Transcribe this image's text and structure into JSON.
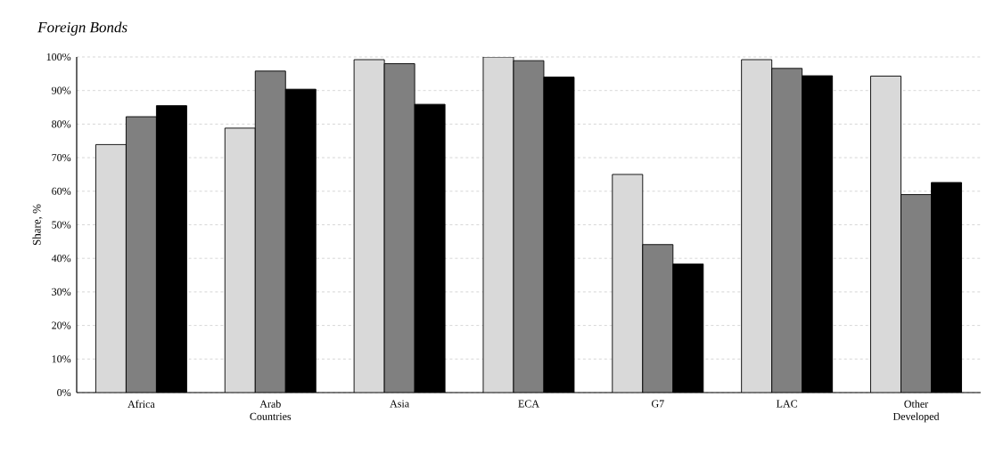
{
  "chart_data": {
    "type": "bar",
    "title": "Foreign Bonds",
    "ylabel": "Share, %",
    "categories": [
      "Africa",
      "Arab Countries",
      "Asia",
      "ECA",
      "G7",
      "LAC",
      "Other Developed"
    ],
    "series": [
      {
        "color": "#d9d9d9",
        "values": [
          73.9,
          78.8,
          99.2,
          100,
          65.0,
          99.2,
          94.3
        ]
      },
      {
        "color": "#808080",
        "values": [
          82.2,
          95.8,
          98.0,
          98.9,
          44.1,
          96.6,
          59.0
        ]
      },
      {
        "color": "#000000",
        "values": [
          85.5,
          90.4,
          85.9,
          94.0,
          38.3,
          94.4,
          62.6
        ]
      }
    ],
    "ylim": [
      0,
      100
    ],
    "yticks": [
      {
        "value": 0,
        "label": "0%"
      },
      {
        "value": 10,
        "label": "10%"
      },
      {
        "value": 20,
        "label": "20%"
      },
      {
        "value": 30,
        "label": "30%"
      },
      {
        "value": 40,
        "label": "40%"
      },
      {
        "value": 50,
        "label": "50%"
      },
      {
        "value": 60,
        "label": "60%"
      },
      {
        "value": 70,
        "label": "70%"
      },
      {
        "value": 80,
        "label": "80%"
      },
      {
        "value": 90,
        "label": "90%"
      },
      {
        "value": 100,
        "label": "100%"
      }
    ],
    "grid": "y",
    "legend": false
  }
}
